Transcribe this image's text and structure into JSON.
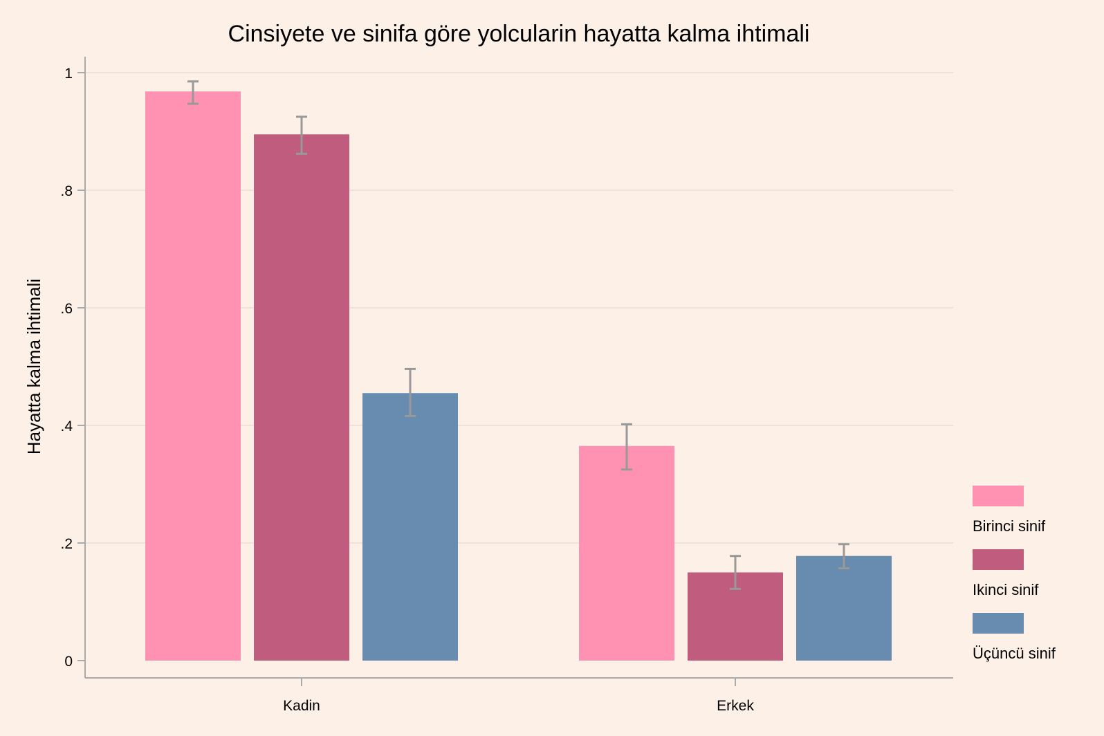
{
  "chart_data": {
    "type": "bar",
    "title": "Cinsiyete ve sinifa göre yolcularin hayatta kalma ihtimali",
    "xlabel": "",
    "ylabel": "Hayatta kalma ihtimali",
    "categories": [
      "Kadin",
      "Erkek"
    ],
    "ylim": [
      0,
      1
    ],
    "yticks": [
      0,
      0.2,
      0.4,
      0.6,
      0.8,
      1
    ],
    "ytick_labels": [
      "0",
      ".2",
      ".4",
      ".6",
      ".8",
      "1"
    ],
    "grid": true,
    "legend_position": "right",
    "background_color": "#fdf0e6",
    "series": [
      {
        "name": "Birinci sinif",
        "color": "#ff91b2",
        "values": [
          0.968,
          0.365
        ],
        "ci_low": [
          0.947,
          0.325
        ],
        "ci_high": [
          0.985,
          0.402
        ]
      },
      {
        "name": "Ikinci sinif",
        "color": "#c05c7d",
        "values": [
          0.895,
          0.15
        ],
        "ci_low": [
          0.862,
          0.122
        ],
        "ci_high": [
          0.925,
          0.178
        ]
      },
      {
        "name": "Üçüncü sinif",
        "color": "#678cb0",
        "values": [
          0.455,
          0.178
        ],
        "ci_low": [
          0.416,
          0.157
        ],
        "ci_high": [
          0.496,
          0.198
        ]
      }
    ]
  }
}
